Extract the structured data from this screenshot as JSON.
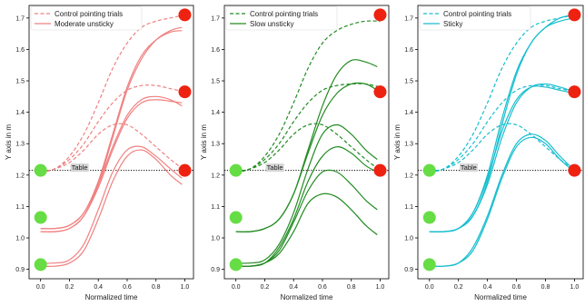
{
  "chart_data": [
    {
      "type": "line",
      "xlabel": "Normalized time",
      "ylabel": "Y axis in m",
      "xlim": [
        -0.08,
        1.06
      ],
      "ylim": [
        0.87,
        1.74
      ],
      "xticks": [
        "0.0",
        "0.2",
        "0.4",
        "0.6",
        "0.8",
        "1.0"
      ],
      "yticks": [
        "0.9",
        "1.0",
        "1.1",
        "1.2",
        "1.3",
        "1.4",
        "1.5",
        "1.6",
        "1.7"
      ],
      "legend": [
        "Control pointing trials",
        "Moderate unsticky"
      ],
      "legend_position": "top-left",
      "color": "#f08080",
      "table_label": "Table",
      "table_y": 1.215,
      "start_markers": [
        {
          "x": 0.0,
          "y": 1.215
        },
        {
          "x": 0.0,
          "y": 1.065
        },
        {
          "x": 0.0,
          "y": 0.915
        }
      ],
      "end_markers": [
        {
          "x": 1.0,
          "y": 1.71
        },
        {
          "x": 1.0,
          "y": 1.465
        },
        {
          "x": 1.0,
          "y": 1.215
        }
      ],
      "series": [
        {
          "style": "dashed",
          "x": [
            0.0,
            0.1,
            0.2,
            0.3,
            0.4,
            0.5,
            0.6,
            0.7,
            0.8,
            0.9,
            1.0
          ],
          "y": [
            1.21,
            1.22,
            1.26,
            1.33,
            1.43,
            1.54,
            1.62,
            1.67,
            1.69,
            1.7,
            1.71
          ]
        },
        {
          "style": "dashed",
          "x": [
            0.0,
            0.1,
            0.2,
            0.3,
            0.4,
            0.5,
            0.6,
            0.7,
            0.8,
            0.9,
            1.0
          ],
          "y": [
            1.21,
            1.22,
            1.25,
            1.3,
            1.37,
            1.43,
            1.47,
            1.485,
            1.485,
            1.475,
            1.465
          ]
        },
        {
          "style": "dashed",
          "x": [
            0.0,
            0.1,
            0.2,
            0.3,
            0.4,
            0.5,
            0.6,
            0.7,
            0.8,
            0.9,
            1.0
          ],
          "y": [
            1.21,
            1.22,
            1.24,
            1.28,
            1.33,
            1.36,
            1.36,
            1.33,
            1.29,
            1.25,
            1.215
          ]
        },
        {
          "style": "solid",
          "x": [
            0.0,
            0.1,
            0.2,
            0.3,
            0.4,
            0.5,
            0.6,
            0.7,
            0.8,
            0.9,
            0.98
          ],
          "y": [
            1.02,
            1.02,
            1.03,
            1.07,
            1.17,
            1.32,
            1.47,
            1.57,
            1.63,
            1.66,
            1.67
          ]
        },
        {
          "style": "solid",
          "x": [
            0.0,
            0.1,
            0.2,
            0.3,
            0.4,
            0.5,
            0.6,
            0.7,
            0.8,
            0.9,
            0.98
          ],
          "y": [
            1.03,
            1.03,
            1.04,
            1.08,
            1.18,
            1.33,
            1.48,
            1.58,
            1.63,
            1.655,
            1.66
          ]
        },
        {
          "style": "solid",
          "x": [
            0.0,
            0.1,
            0.2,
            0.3,
            0.4,
            0.5,
            0.6,
            0.7,
            0.8,
            0.9,
            0.98
          ],
          "y": [
            1.02,
            1.02,
            1.03,
            1.07,
            1.16,
            1.28,
            1.38,
            1.43,
            1.44,
            1.435,
            1.43
          ]
        },
        {
          "style": "solid",
          "x": [
            0.0,
            0.1,
            0.2,
            0.3,
            0.4,
            0.5,
            0.6,
            0.7,
            0.8,
            0.9,
            0.98
          ],
          "y": [
            1.03,
            1.03,
            1.04,
            1.08,
            1.17,
            1.29,
            1.39,
            1.44,
            1.45,
            1.44,
            1.42
          ]
        },
        {
          "style": "solid",
          "x": [
            0.0,
            0.1,
            0.2,
            0.3,
            0.4,
            0.5,
            0.6,
            0.7,
            0.8,
            0.9,
            0.98
          ],
          "y": [
            0.91,
            0.91,
            0.92,
            0.96,
            1.06,
            1.18,
            1.26,
            1.28,
            1.25,
            1.2,
            1.17
          ]
        },
        {
          "style": "solid",
          "x": [
            0.0,
            0.1,
            0.2,
            0.3,
            0.4,
            0.5,
            0.6,
            0.7,
            0.8,
            0.9,
            0.98
          ],
          "y": [
            0.92,
            0.92,
            0.93,
            0.98,
            1.09,
            1.21,
            1.28,
            1.29,
            1.26,
            1.22,
            1.19
          ]
        }
      ]
    },
    {
      "type": "line",
      "xlabel": "Normalized time",
      "ylabel": "Y axis in m",
      "xlim": [
        -0.08,
        1.06
      ],
      "ylim": [
        0.87,
        1.74
      ],
      "xticks": [
        "0.0",
        "0.2",
        "0.4",
        "0.6",
        "0.8",
        "1.0"
      ],
      "yticks": [
        "0.9",
        "1.0",
        "1.1",
        "1.2",
        "1.3",
        "1.4",
        "1.5",
        "1.6",
        "1.7"
      ],
      "legend": [
        "Control pointing trials",
        "Slow unsticky"
      ],
      "legend_position": "top-left",
      "color": "#228b22",
      "table_label": "Table",
      "table_y": 1.215,
      "start_markers": [
        {
          "x": 0.0,
          "y": 1.215
        },
        {
          "x": 0.0,
          "y": 1.065
        },
        {
          "x": 0.0,
          "y": 0.915
        }
      ],
      "end_markers": [
        {
          "x": 1.0,
          "y": 1.71
        },
        {
          "x": 1.0,
          "y": 1.465
        },
        {
          "x": 1.0,
          "y": 1.215
        }
      ],
      "series": [
        {
          "style": "dashed",
          "x": [
            0.0,
            0.1,
            0.2,
            0.3,
            0.4,
            0.5,
            0.6,
            0.7,
            0.8,
            0.9,
            1.0
          ],
          "y": [
            1.21,
            1.22,
            1.26,
            1.33,
            1.43,
            1.54,
            1.62,
            1.66,
            1.68,
            1.69,
            1.69
          ]
        },
        {
          "style": "dashed",
          "x": [
            0.0,
            0.1,
            0.2,
            0.3,
            0.4,
            0.5,
            0.6,
            0.7,
            0.8,
            0.9,
            1.0
          ],
          "y": [
            1.21,
            1.22,
            1.25,
            1.3,
            1.37,
            1.43,
            1.47,
            1.485,
            1.49,
            1.49,
            1.48
          ]
        },
        {
          "style": "dashed",
          "x": [
            0.0,
            0.1,
            0.2,
            0.3,
            0.4,
            0.5,
            0.6,
            0.7,
            0.8,
            0.9,
            1.0
          ],
          "y": [
            1.21,
            1.22,
            1.24,
            1.28,
            1.33,
            1.36,
            1.36,
            1.33,
            1.29,
            1.25,
            1.215
          ]
        },
        {
          "style": "solid",
          "x": [
            0.0,
            0.1,
            0.2,
            0.3,
            0.4,
            0.5,
            0.6,
            0.7,
            0.8,
            0.9,
            0.98
          ],
          "y": [
            1.02,
            1.02,
            1.03,
            1.06,
            1.14,
            1.28,
            1.42,
            1.52,
            1.565,
            1.56,
            1.545
          ]
        },
        {
          "style": "solid",
          "x": [
            0.0,
            0.1,
            0.2,
            0.3,
            0.4,
            0.5,
            0.6,
            0.7,
            0.8,
            0.9,
            0.98
          ],
          "y": [
            1.02,
            1.02,
            1.03,
            1.06,
            1.14,
            1.27,
            1.39,
            1.46,
            1.49,
            1.49,
            1.47
          ]
        },
        {
          "style": "solid",
          "x": [
            0.0,
            0.1,
            0.2,
            0.3,
            0.4,
            0.5,
            0.6,
            0.7,
            0.8,
            0.9,
            0.98
          ],
          "y": [
            0.92,
            0.92,
            0.93,
            0.98,
            1.08,
            1.22,
            1.33,
            1.36,
            1.33,
            1.28,
            1.25
          ]
        },
        {
          "style": "solid",
          "x": [
            0.0,
            0.1,
            0.2,
            0.3,
            0.4,
            0.5,
            0.6,
            0.7,
            0.8,
            0.9,
            0.98
          ],
          "y": [
            0.91,
            0.91,
            0.92,
            0.97,
            1.06,
            1.18,
            1.26,
            1.29,
            1.27,
            1.23,
            1.21
          ]
        },
        {
          "style": "solid",
          "x": [
            0.0,
            0.1,
            0.2,
            0.3,
            0.4,
            0.5,
            0.6,
            0.7,
            0.8,
            0.9,
            0.98
          ],
          "y": [
            0.91,
            0.91,
            0.92,
            0.96,
            1.05,
            1.15,
            1.21,
            1.21,
            1.17,
            1.12,
            1.09
          ]
        },
        {
          "style": "solid",
          "x": [
            0.0,
            0.1,
            0.2,
            0.3,
            0.4,
            0.5,
            0.6,
            0.7,
            0.8,
            0.9,
            0.98
          ],
          "y": [
            0.91,
            0.91,
            0.92,
            0.95,
            1.02,
            1.11,
            1.14,
            1.13,
            1.09,
            1.04,
            1.01
          ]
        }
      ]
    },
    {
      "type": "line",
      "xlabel": "Normalized time",
      "ylabel": "Y axis in m",
      "xlim": [
        -0.08,
        1.06
      ],
      "ylim": [
        0.87,
        1.74
      ],
      "xticks": [
        "0.0",
        "0.2",
        "0.4",
        "0.6",
        "0.8",
        "1.0"
      ],
      "yticks": [
        "0.9",
        "1.0",
        "1.1",
        "1.2",
        "1.3",
        "1.4",
        "1.5",
        "1.6",
        "1.7"
      ],
      "legend": [
        "Control pointing trials",
        "Sticky"
      ],
      "legend_position": "top-left",
      "color": "#17becf",
      "table_label": "Table",
      "table_y": 1.215,
      "start_markers": [
        {
          "x": 0.0,
          "y": 1.215
        },
        {
          "x": 0.0,
          "y": 1.065
        },
        {
          "x": 0.0,
          "y": 0.915
        }
      ],
      "end_markers": [
        {
          "x": 1.0,
          "y": 1.71
        },
        {
          "x": 1.0,
          "y": 1.465
        },
        {
          "x": 1.0,
          "y": 1.215
        }
      ],
      "series": [
        {
          "style": "dashed",
          "x": [
            0.0,
            0.1,
            0.2,
            0.3,
            0.4,
            0.5,
            0.6,
            0.7,
            0.8,
            0.9,
            1.0
          ],
          "y": [
            1.21,
            1.22,
            1.26,
            1.33,
            1.43,
            1.54,
            1.62,
            1.67,
            1.69,
            1.7,
            1.71
          ]
        },
        {
          "style": "dashed",
          "x": [
            0.0,
            0.1,
            0.2,
            0.3,
            0.4,
            0.5,
            0.6,
            0.7,
            0.8,
            0.9,
            1.0
          ],
          "y": [
            1.21,
            1.22,
            1.25,
            1.3,
            1.37,
            1.43,
            1.47,
            1.485,
            1.485,
            1.475,
            1.465
          ]
        },
        {
          "style": "dashed",
          "x": [
            0.0,
            0.1,
            0.2,
            0.3,
            0.4,
            0.5,
            0.6,
            0.7,
            0.8,
            0.9,
            1.0
          ],
          "y": [
            1.21,
            1.22,
            1.24,
            1.28,
            1.33,
            1.36,
            1.36,
            1.33,
            1.29,
            1.25,
            1.215
          ]
        },
        {
          "style": "solid",
          "x": [
            0.0,
            0.1,
            0.2,
            0.3,
            0.4,
            0.5,
            0.6,
            0.7,
            0.8,
            0.9,
            1.0
          ],
          "y": [
            1.02,
            1.02,
            1.03,
            1.07,
            1.18,
            1.36,
            1.52,
            1.62,
            1.67,
            1.7,
            1.71
          ]
        },
        {
          "style": "solid",
          "x": [
            0.0,
            0.1,
            0.2,
            0.3,
            0.4,
            0.5,
            0.6,
            0.7,
            0.8,
            0.9,
            1.0
          ],
          "y": [
            1.02,
            1.02,
            1.03,
            1.08,
            1.2,
            1.38,
            1.53,
            1.62,
            1.67,
            1.69,
            1.7
          ]
        },
        {
          "style": "solid",
          "x": [
            0.0,
            0.1,
            0.2,
            0.3,
            0.4,
            0.5,
            0.6,
            0.7,
            0.8,
            0.9,
            1.0
          ],
          "y": [
            1.02,
            1.02,
            1.03,
            1.07,
            1.17,
            1.32,
            1.43,
            1.48,
            1.49,
            1.48,
            1.465
          ]
        },
        {
          "style": "solid",
          "x": [
            0.0,
            0.1,
            0.2,
            0.3,
            0.4,
            0.5,
            0.6,
            0.7,
            0.8,
            0.9,
            1.0
          ],
          "y": [
            1.02,
            1.02,
            1.03,
            1.08,
            1.19,
            1.34,
            1.44,
            1.48,
            1.48,
            1.47,
            1.46
          ]
        },
        {
          "style": "solid",
          "x": [
            0.0,
            0.1,
            0.2,
            0.3,
            0.4,
            0.5,
            0.6,
            0.7,
            0.8,
            0.9,
            1.0
          ],
          "y": [
            0.91,
            0.91,
            0.92,
            0.97,
            1.07,
            1.2,
            1.3,
            1.33,
            1.31,
            1.26,
            1.215
          ]
        },
        {
          "style": "solid",
          "x": [
            0.0,
            0.1,
            0.2,
            0.3,
            0.4,
            0.5,
            0.6,
            0.7,
            0.8,
            0.9,
            1.0
          ],
          "y": [
            0.91,
            0.91,
            0.92,
            0.96,
            1.06,
            1.19,
            1.29,
            1.32,
            1.3,
            1.25,
            1.21
          ]
        }
      ]
    }
  ]
}
